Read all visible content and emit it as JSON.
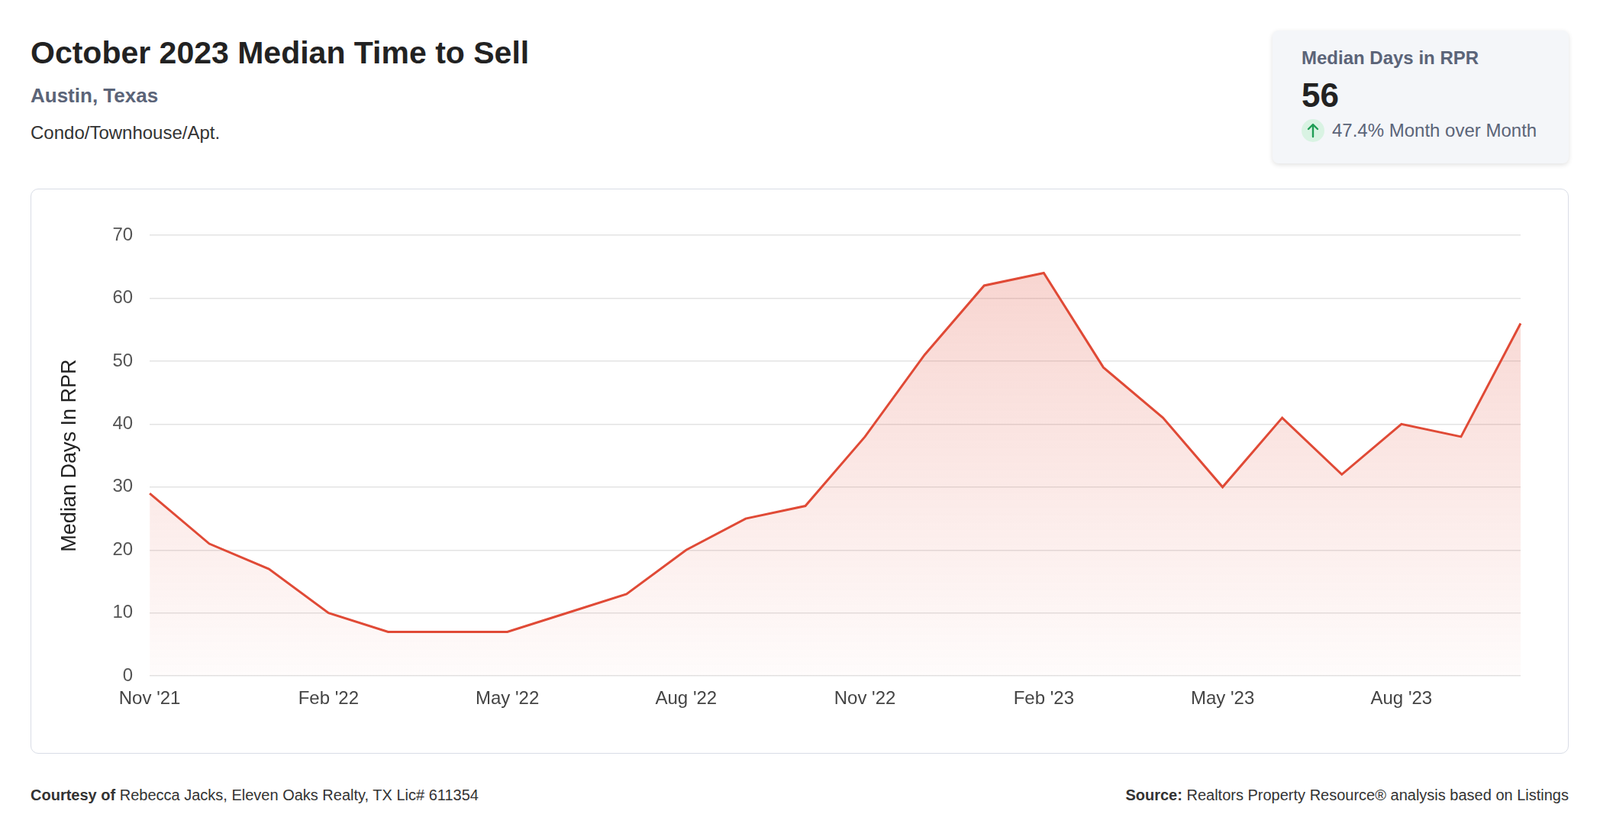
{
  "chart_data": {
    "type": "line",
    "title": "October 2023 Median Time to Sell",
    "subtitle": "Austin, Texas",
    "description": "Condo/Townhouse/Apt.",
    "ylabel": "Median Days In RPR",
    "categories": [
      "Nov '21",
      null,
      null,
      "Feb '22",
      null,
      null,
      "May '22",
      null,
      null,
      "Aug '22",
      null,
      null,
      "Nov '22",
      null,
      null,
      "Feb '23",
      null,
      null,
      "May '23",
      null,
      null,
      "Aug '23",
      null,
      null
    ],
    "values": [
      29,
      21,
      17,
      10,
      7,
      7,
      7,
      10,
      13,
      20,
      25,
      27,
      38,
      51,
      62,
      64,
      49,
      41,
      30,
      41,
      32,
      40,
      38,
      56
    ],
    "color": "#e04a36",
    "ylim": [
      0,
      70
    ],
    "yticks": [
      0,
      10,
      20,
      30,
      40,
      50,
      60,
      70
    ],
    "grid": true
  },
  "summary_card": {
    "label": "Median Days in RPR",
    "value": 56,
    "change": "47.4% Month over Month"
  },
  "footer": {
    "credit": {
      "label": "Courtesy of",
      "text": "Rebecca Jacks, Eleven Oaks Realty, TX Lic# 611354"
    },
    "source": {
      "label": "Source:",
      "text": "Realtors Property Resource® analysis based on Listings"
    }
  }
}
